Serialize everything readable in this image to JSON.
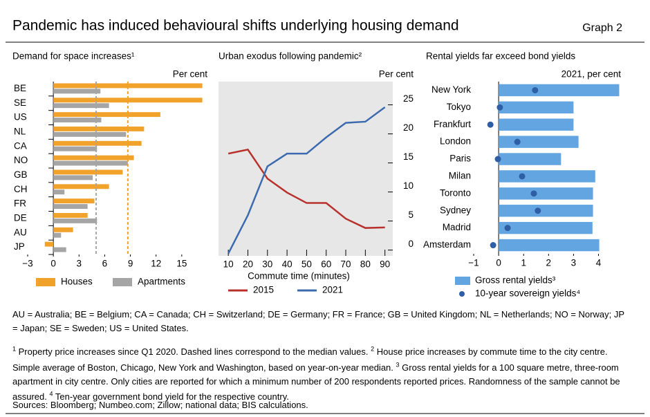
{
  "header": {
    "title": "Pandemic has induced behavioural shifts underlying housing demand",
    "label": "Graph 2"
  },
  "chart_data": [
    {
      "type": "bar",
      "orientation": "horizontal",
      "title": "Demand for space increases¹",
      "unit": "Per cent",
      "categories": [
        "BE",
        "SE",
        "US",
        "NL",
        "CA",
        "NO",
        "GB",
        "CH",
        "FR",
        "DE",
        "AU",
        "JP"
      ],
      "series": [
        {
          "name": "Houses",
          "kind": "bar",
          "color": "#f0a22b",
          "values": [
            17.4,
            17.4,
            12.5,
            10.6,
            10.3,
            9.4,
            8.1,
            6.5,
            4.8,
            4.0,
            2.3,
            -1.0
          ],
          "median": 8.7
        },
        {
          "name": "Apartments",
          "kind": "bar",
          "color": "#a5a5a5",
          "values": [
            5.5,
            6.5,
            5.6,
            8.5,
            5.1,
            8.7,
            4.6,
            1.3,
            4.0,
            5.1,
            0.9,
            1.5
          ],
          "median": 5.0
        }
      ],
      "xlim": [
        -3,
        18
      ],
      "xticks": [
        {
          "value": -3,
          "label": "−3"
        },
        0,
        3,
        6,
        9,
        12,
        15
      ]
    },
    {
      "type": "line",
      "title": "Urban exodus following pandemic²",
      "unit": "Per cent",
      "x_label": "Commute time (minutes)",
      "x": [
        10,
        20,
        30,
        40,
        50,
        60,
        70,
        80,
        90
      ],
      "series": [
        {
          "name": "2015",
          "color": "#b8312c",
          "values": [
            16.6,
            17.3,
            12.3,
            9.9,
            8.1,
            8.1,
            5.4,
            3.8,
            3.9
          ]
        },
        {
          "name": "2021",
          "color": "#3b6aaf",
          "values": [
            -0.6,
            6.0,
            14.4,
            16.6,
            16.6,
            19.4,
            21.9,
            22.1,
            24.6
          ]
        }
      ],
      "xlim": [
        5,
        94
      ],
      "xticks": [
        10,
        20,
        30,
        40,
        50,
        60,
        70,
        80,
        90
      ],
      "ylim": [
        -1,
        29
      ],
      "yticks": [
        0,
        5,
        10,
        15,
        20,
        25
      ],
      "background": "#e7e7e7"
    },
    {
      "type": "bar",
      "orientation": "horizontal",
      "title": "Rental yields far exceed bond yields",
      "unit": "2021, per cent",
      "categories": [
        "New York",
        "Tokyo",
        "Frankfurt",
        "London",
        "Paris",
        "Milan",
        "Toronto",
        "Sydney",
        "Madrid",
        "Amsterdam"
      ],
      "series": [
        {
          "name": "Gross rental yields³",
          "kind": "bar",
          "color": "#62a5e0",
          "values": [
            4.83,
            3.0,
            3.0,
            3.2,
            2.5,
            3.87,
            3.78,
            3.78,
            3.76,
            4.03
          ]
        },
        {
          "name": "10-year sovereign yields⁴",
          "kind": "dot",
          "color": "#2d5ea6",
          "values": [
            1.46,
            0.05,
            -0.33,
            0.75,
            -0.03,
            0.94,
            1.41,
            1.57,
            0.36,
            -0.22
          ]
        }
      ],
      "xlim": [
        -1,
        4.9
      ],
      "xticks": [
        {
          "value": -1,
          "label": "−1"
        },
        0,
        1,
        2,
        3,
        4
      ]
    }
  ],
  "abbreviations": "AU = Australia; BE = Belgium; CA = Canada; CH = Switzerland; DE = Germany; FR = France; GB = United Kingdom; NL = Netherlands; NO = Norway; JP = Japan; SE = Sweden; US = United States.",
  "footnotes": [
    {
      "mark": "1",
      "text": "Property price increases since Q1 2020. Dashed lines correspond to the median values."
    },
    {
      "mark": "2",
      "text": "House price increases by commute time to the city centre. Simple average of Boston, Chicago, New York and Washington, based on year-on-year median."
    },
    {
      "mark": "3",
      "text": "Gross rental yields for a 100 square metre, three-room apartment in city centre. Only cities are reported for which a minimum number of 200 respondents reported prices. Randomness of the sample cannot be assured."
    },
    {
      "mark": "4",
      "text": "Ten-year government bond yield for the respective country."
    }
  ],
  "sources": "Sources: Bloomberg; Numbeo.com; Zillow; national data; BIS calculations."
}
